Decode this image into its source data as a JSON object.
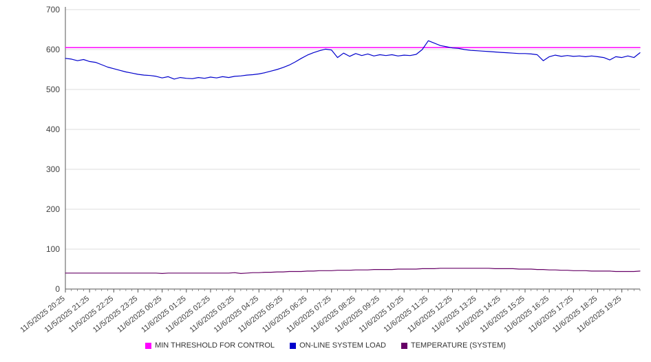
{
  "chart_data": {
    "type": "line",
    "title": "",
    "xlabel": "",
    "ylabel": "",
    "ylim": [
      0,
      700
    ],
    "y_ticks": [
      0,
      100,
      200,
      300,
      400,
      500,
      600,
      700
    ],
    "grid": true,
    "legend_position": "bottom",
    "points_per_label": 4,
    "colors": {
      "grid": "#dddddd",
      "axis": "#555555",
      "text": "#404040",
      "background": "#ffffff"
    },
    "x_labels": [
      "11/5/2025 20:25",
      "11/5/2025 21:25",
      "11/5/2025 22:25",
      "11/5/2025 23:25",
      "11/6/2025 00:25",
      "11/6/2025 01:25",
      "11/6/2025 02:25",
      "11/6/2025 03:25",
      "11/6/2025 04:25",
      "11/6/2025 05:25",
      "11/6/2025 06:25",
      "11/6/2025 07:25",
      "11/6/2025 08:25",
      "11/6/2025 09:25",
      "11/6/2025 10:25",
      "11/6/2025 11:25",
      "11/6/2025 12:25",
      "11/6/2025 13:25",
      "11/6/2025 14:25",
      "11/6/2025 15:25",
      "11/6/2025 16:25",
      "11/6/2025 17:25",
      "11/6/2025 18:25",
      "11/6/2025 19:25"
    ],
    "series": [
      {
        "name": "MIN THRESHOLD FOR CONTROL",
        "color": "#ff00ff",
        "width": 1.5,
        "constant": 605
      },
      {
        "name": "ON-LINE SYSTEM LOAD",
        "color": "#0000cc",
        "width": 1.2,
        "values": [
          578,
          576,
          572,
          575,
          570,
          568,
          562,
          556,
          552,
          548,
          544,
          541,
          538,
          536,
          535,
          533,
          529,
          532,
          526,
          530,
          528,
          527,
          530,
          528,
          531,
          529,
          532,
          530,
          533,
          534,
          536,
          537,
          539,
          542,
          546,
          550,
          555,
          561,
          569,
          578,
          586,
          592,
          597,
          601,
          599,
          580,
          591,
          583,
          590,
          585,
          589,
          584,
          587,
          585,
          587,
          584,
          586,
          585,
          588,
          600,
          622,
          616,
          610,
          607,
          604,
          603,
          600,
          598,
          597,
          596,
          595,
          594,
          593,
          592,
          591,
          590,
          590,
          589,
          587,
          572,
          582,
          586,
          583,
          585,
          583,
          584,
          582,
          584,
          582,
          580,
          574,
          582,
          580,
          584,
          580,
          592
        ]
      },
      {
        "name": "TEMPERATURE (SYSTEM)",
        "color": "#660066",
        "width": 1.2,
        "values": [
          40,
          40,
          40,
          40,
          40,
          40,
          40,
          40,
          40,
          40,
          40,
          40,
          40,
          40,
          40,
          40,
          39,
          40,
          40,
          40,
          40,
          40,
          40,
          40,
          40,
          40,
          40,
          40,
          41,
          39,
          40,
          41,
          41,
          42,
          42,
          43,
          43,
          44,
          44,
          44,
          45,
          45,
          46,
          46,
          46,
          47,
          47,
          47,
          48,
          48,
          48,
          49,
          49,
          49,
          49,
          50,
          50,
          50,
          50,
          51,
          51,
          51,
          52,
          52,
          52,
          52,
          52,
          52,
          52,
          52,
          52,
          51,
          51,
          51,
          51,
          50,
          50,
          50,
          49,
          49,
          48,
          48,
          47,
          47,
          46,
          46,
          46,
          45,
          45,
          45,
          45,
          44,
          44,
          44,
          44,
          45
        ]
      }
    ]
  },
  "legend": {
    "items": [
      {
        "label": "MIN THRESHOLD FOR CONTROL"
      },
      {
        "label": "ON-LINE SYSTEM LOAD"
      },
      {
        "label": "TEMPERATURE (SYSTEM)"
      }
    ]
  }
}
